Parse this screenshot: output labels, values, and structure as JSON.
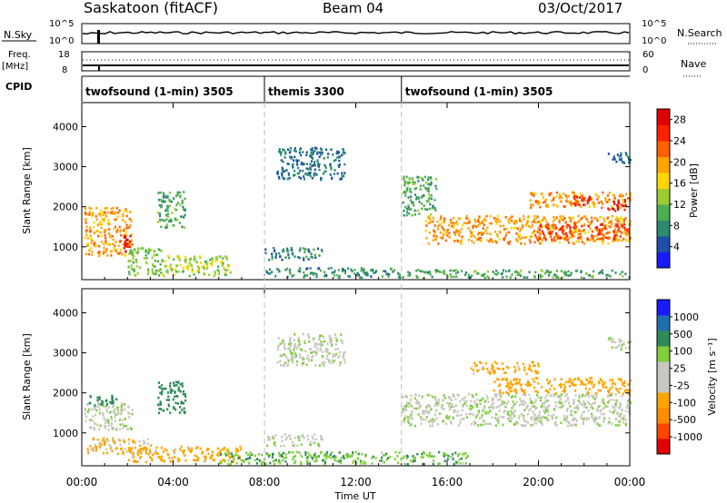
{
  "header": {
    "station": "Saskatoon (fitACF)",
    "beam": "Beam 04",
    "date": "03/Oct/2017"
  },
  "summary_panels": {
    "nsky_label": "N.Sky",
    "nsky_ticks": [
      "10^5",
      "10^0"
    ],
    "nsearch_label": "N.Search",
    "nsearch_ticks": [
      "10^5",
      "10^0"
    ],
    "freq_label": "Freq.",
    "freq_unit": "[MHz]",
    "freq_ticks": [
      "18",
      "8"
    ],
    "nave_label": "Nave",
    "nave_ticks": [
      "60",
      "0"
    ],
    "cpid_label": "CPID"
  },
  "cpid_segments": [
    {
      "label": "twofsound (1-min) 3505",
      "start_hour": 0,
      "end_hour": 8
    },
    {
      "label": "themis 3300",
      "start_hour": 8,
      "end_hour": 14
    },
    {
      "label": "twofsound (1-min) 3505",
      "start_hour": 14,
      "end_hour": 24
    }
  ],
  "colors": {
    "power_scale": [
      "#1a1aff",
      "#1f4fa8",
      "#2d8a72",
      "#4caf50",
      "#9acd32",
      "#ffd700",
      "#ffa500",
      "#ff6000",
      "#ff2000",
      "#e00000"
    ],
    "velocity_scale": [
      "#e00000",
      "#ff4500",
      "#ff8c00",
      "#ffa500",
      "#c8c8c0",
      "#c8c8c0",
      "#7fcf3a",
      "#2e8b57",
      "#1e6fb0",
      "#1a1aff"
    ],
    "ground_scatter": "#c8c8c0"
  },
  "chart_data": [
    {
      "type": "heatmap",
      "title": "Power",
      "ylabel": "Slant Range [km]",
      "xlabel": "",
      "xlim": [
        0,
        24
      ],
      "ylim": [
        180,
        4600
      ],
      "yticks": [
        1000,
        2000,
        3000,
        4000
      ],
      "colorbar": {
        "label": "Power [dB]",
        "ticks": [
          4,
          8,
          12,
          16,
          20,
          24,
          28
        ],
        "range": [
          0,
          30
        ]
      },
      "scatter_regions": [
        {
          "t0": 0.1,
          "t1": 2.2,
          "r0": 800,
          "r1": 2000,
          "value": 20
        },
        {
          "t0": 1.8,
          "t1": 2.1,
          "r0": 900,
          "r1": 1300,
          "value": 28
        },
        {
          "t0": 2.0,
          "t1": 3.5,
          "r0": 300,
          "r1": 1000,
          "value": 12
        },
        {
          "t0": 3.3,
          "t1": 4.5,
          "r0": 1500,
          "r1": 2400,
          "value": 10
        },
        {
          "t0": 3.5,
          "t1": 6.5,
          "r0": 300,
          "r1": 800,
          "value": 14
        },
        {
          "t0": 8.0,
          "t1": 10.5,
          "r0": 700,
          "r1": 1000,
          "value": 8
        },
        {
          "t0": 8.5,
          "t1": 11.5,
          "r0": 2700,
          "r1": 3500,
          "value": 6
        },
        {
          "t0": 8.0,
          "t1": 14.0,
          "r0": 250,
          "r1": 500,
          "value": 8
        },
        {
          "t0": 14.0,
          "t1": 15.5,
          "r0": 1800,
          "r1": 2800,
          "value": 10
        },
        {
          "t0": 15.0,
          "t1": 24.0,
          "r0": 1100,
          "r1": 1800,
          "value": 20
        },
        {
          "t0": 20.0,
          "t1": 24.0,
          "r0": 1200,
          "r1": 1600,
          "value": 24
        },
        {
          "t0": 19.5,
          "t1": 24.0,
          "r0": 2000,
          "r1": 2400,
          "value": 20
        },
        {
          "t0": 21.5,
          "t1": 22.3,
          "r0": 2050,
          "r1": 2300,
          "value": 26
        },
        {
          "t0": 23.0,
          "t1": 23.8,
          "r0": 1900,
          "r1": 2200,
          "value": 28
        },
        {
          "t0": 23.0,
          "t1": 24.0,
          "r0": 3100,
          "r1": 3400,
          "value": 6
        },
        {
          "t0": 14.0,
          "t1": 24.0,
          "r0": 250,
          "r1": 450,
          "value": 10
        }
      ]
    },
    {
      "type": "heatmap",
      "title": "Velocity",
      "ylabel": "Slant Range [km]",
      "xlabel": "Time UT",
      "xlim": [
        0,
        24
      ],
      "ylim": [
        180,
        4600
      ],
      "yticks": [
        1000,
        2000,
        3000,
        4000
      ],
      "xticks": [
        "00:00",
        "04:00",
        "08:00",
        "12:00",
        "16:00",
        "20:00",
        "00:00"
      ],
      "colorbar": {
        "label": "Velocity [m s⁻¹]",
        "ticks": [
          1000,
          500,
          100,
          25,
          -25,
          -100,
          -500,
          -1000
        ]
      },
      "scatter_regions": [
        {
          "t0": 0.1,
          "t1": 2.2,
          "r0": 1100,
          "r1": 1800,
          "value": 0
        },
        {
          "t0": 0.3,
          "t1": 1.5,
          "r0": 1700,
          "r1": 2000,
          "value": 300
        },
        {
          "t0": 0.2,
          "t1": 3.0,
          "r0": 500,
          "r1": 900,
          "value": -120
        },
        {
          "t0": 2.0,
          "t1": 7.0,
          "r0": 300,
          "r1": 700,
          "value": -150
        },
        {
          "t0": 3.3,
          "t1": 4.5,
          "r0": 1500,
          "r1": 2300,
          "value": 300
        },
        {
          "t0": 8.0,
          "t1": 10.5,
          "r0": 700,
          "r1": 1000,
          "value": 0
        },
        {
          "t0": 8.5,
          "t1": 11.5,
          "r0": 2700,
          "r1": 3500,
          "value": 0
        },
        {
          "t0": 6.0,
          "t1": 17.0,
          "r0": 250,
          "r1": 550,
          "value": 80
        },
        {
          "t0": 14.0,
          "t1": 24.0,
          "r0": 1200,
          "r1": 2000,
          "value": 0
        },
        {
          "t0": 18.0,
          "t1": 24.0,
          "r0": 2000,
          "r1": 2400,
          "value": -200
        },
        {
          "t0": 17.0,
          "t1": 20.0,
          "r0": 2500,
          "r1": 2800,
          "value": -150
        },
        {
          "t0": 23.0,
          "t1": 24.0,
          "r0": 3100,
          "r1": 3400,
          "value": 0
        }
      ]
    }
  ]
}
